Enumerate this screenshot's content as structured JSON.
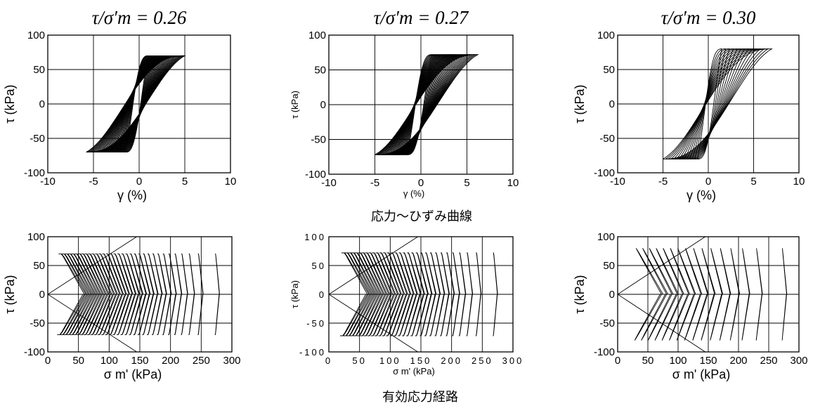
{
  "captions": {
    "top_row": "応力～ひずみ曲線",
    "bottom_row": "有効応力経路"
  },
  "colors": {
    "line": "#000000",
    "grid": "#000000",
    "background": "#ffffff"
  },
  "chart_data": [
    {
      "type": "line",
      "title": "τ/σ′m = 0.26",
      "xlabel": "γ (%)",
      "ylabel": "τ (kPa)",
      "xlim": [
        -10,
        10
      ],
      "ylim": [
        -100,
        100
      ],
      "xticks": [
        "-10",
        "-5",
        "0",
        "5",
        "10"
      ],
      "yticks": [
        "-100",
        "-50",
        "0",
        "50",
        "100"
      ],
      "grid": true,
      "curve": {
        "kind": "hysteresis",
        "cycles": 30,
        "tau_amp": 70,
        "gamma_max_start": 1.0,
        "gamma_max_end": 5.0,
        "gamma_min_start": -1.5,
        "gamma_min_end": -5.8
      }
    },
    {
      "type": "line",
      "title": "τ/σ′m = 0.27",
      "xlabel": "γ (%)",
      "ylabel": "τ (kPa)",
      "xlim": [
        -10,
        10
      ],
      "ylim": [
        -100,
        100
      ],
      "xticks": [
        "-10",
        "-5",
        "0",
        "5",
        "10"
      ],
      "yticks": [
        "-100",
        "-50",
        "0",
        "50",
        "100"
      ],
      "grid": true,
      "curve": {
        "kind": "hysteresis",
        "cycles": 28,
        "tau_amp": 72,
        "gamma_max_start": 1.2,
        "gamma_max_end": 6.2,
        "gamma_min_start": -1.5,
        "gamma_min_end": -5.0
      }
    },
    {
      "type": "line",
      "title": "τ/σ′m = 0.30",
      "xlabel": "γ (%)",
      "ylabel": "τ (kPa)",
      "xlim": [
        -10,
        10
      ],
      "ylim": [
        -100,
        100
      ],
      "xticks": [
        "-10",
        "-5",
        "0",
        "5",
        "10"
      ],
      "yticks": [
        "-100",
        "-50",
        "0",
        "50",
        "100"
      ],
      "grid": true,
      "curve": {
        "kind": "hysteresis",
        "cycles": 14,
        "tau_amp": 80,
        "gamma_max_start": 1.5,
        "gamma_max_end": 7.0,
        "gamma_min_start": -1.2,
        "gamma_min_end": -5.0
      }
    },
    {
      "type": "line",
      "title": "",
      "xlabel": "σ m' (kPa)",
      "ylabel": "τ (kPa)",
      "xlim": [
        0,
        300
      ],
      "ylim": [
        -100,
        100
      ],
      "xticks": [
        "0",
        "50",
        "100",
        "150",
        "200",
        "250",
        "300"
      ],
      "yticks": [
        "-100",
        "-50",
        "0",
        "50",
        "100"
      ],
      "grid": true,
      "failure_line_slope": 0.69,
      "curve": {
        "kind": "stress_path",
        "cycles": 34,
        "tau_amp": 70,
        "sigma_start": 280,
        "sigma_end": 62,
        "flat_top": true
      }
    },
    {
      "type": "line",
      "title": "",
      "xlabel": "σ m' (kPa)",
      "ylabel": "τ (kPa)",
      "xlim": [
        0,
        300
      ],
      "ylim": [
        -100,
        100
      ],
      "xticks": [
        "0",
        "50",
        "100",
        "150",
        "200",
        "250",
        "300"
      ],
      "yticks": [
        "-100",
        "-50",
        "0",
        "50",
        "100"
      ],
      "grid": true,
      "failure_line_slope": 0.69,
      "curve": {
        "kind": "stress_path",
        "cycles": 32,
        "tau_amp": 72,
        "sigma_start": 275,
        "sigma_end": 65,
        "flat_top": true
      }
    },
    {
      "type": "line",
      "title": "",
      "xlabel": "σ m' (kPa)",
      "ylabel": "τ (kPa)",
      "xlim": [
        0,
        300
      ],
      "ylim": [
        -100,
        100
      ],
      "xticks": [
        "0",
        "50",
        "100",
        "150",
        "200",
        "250",
        "300"
      ],
      "yticks": [
        "-100",
        "-50",
        "0",
        "50",
        "100"
      ],
      "grid": true,
      "failure_line_slope": 0.69,
      "curve": {
        "kind": "stress_path",
        "cycles": 16,
        "tau_amp": 80,
        "sigma_start": 280,
        "sigma_end": 75,
        "flat_top": false
      }
    }
  ]
}
